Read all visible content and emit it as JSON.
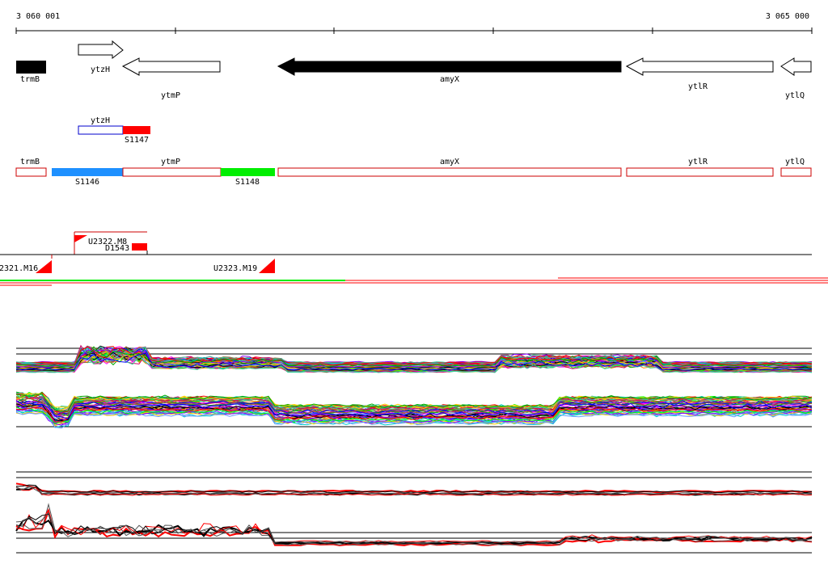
{
  "ruler": {
    "start_label": "3 060 001",
    "end_label": "3 065 000"
  },
  "genes": [
    {
      "name": "trmB",
      "strand": "+",
      "filled": true,
      "color": "#000000",
      "label": "trmB"
    },
    {
      "name": "ytzH",
      "strand": "+",
      "filled": false,
      "color": "#000000",
      "label": "ytzH"
    },
    {
      "name": "ytmP",
      "strand": "-",
      "filled": false,
      "color": "#000000",
      "label": "ytmP"
    },
    {
      "name": "amyX",
      "strand": "-",
      "filled": true,
      "color": "#000000",
      "label": "amyX"
    },
    {
      "name": "ytlR",
      "strand": "-",
      "filled": false,
      "color": "#000000",
      "label": "ytlR"
    },
    {
      "name": "ytlQ",
      "strand": "-",
      "filled": false,
      "color": "#000000",
      "label": "ytlQ"
    }
  ],
  "upper_track": {
    "box_label": "ytzH",
    "segment": {
      "label": "S1147",
      "color": "#ff0000"
    }
  },
  "lower_track": {
    "labels": [
      "trmB",
      "ytmP",
      "amyX",
      "ytlR",
      "ytlQ"
    ],
    "segments": [
      {
        "label": "S1146",
        "color": "#1e90ff"
      },
      {
        "label": "S1148",
        "color": "#00ee00"
      }
    ]
  },
  "features": {
    "upper": [
      "U2322.M8",
      "D1543"
    ],
    "lower": [
      "2321.M16",
      "U2323.M19"
    ]
  },
  "colors": {
    "gene_outline": "#000000",
    "track_outline": "#cc0000",
    "segment_red": "#ff0000",
    "segment_blue": "#1e90ff",
    "segment_green": "#00ee00",
    "profile_highlight": "#ff0000"
  }
}
